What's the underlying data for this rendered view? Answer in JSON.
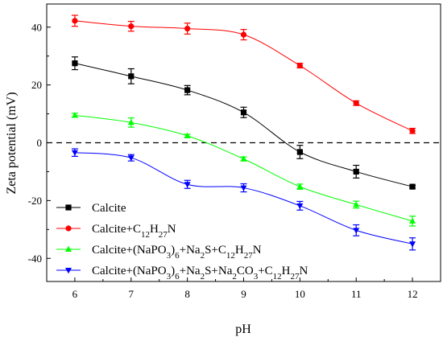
{
  "chart_data": {
    "type": "line",
    "xlabel": "pH",
    "ylabel": "Zeta potential (mV)",
    "xlim": [
      5.5,
      12.5
    ],
    "ylim": [
      -48,
      48
    ],
    "x_ticks": [
      6,
      7,
      8,
      9,
      10,
      11,
      12
    ],
    "x_tick_labels": [
      "6",
      "7",
      "8",
      "9",
      "10",
      "11",
      "12"
    ],
    "y_ticks": [
      -40,
      -20,
      0,
      20,
      40
    ],
    "y_tick_labels": [
      "-40",
      "-20",
      "0",
      "20",
      "40"
    ],
    "reference_line": {
      "y": 0,
      "style": "dashed"
    },
    "grid": false,
    "legend_position": "bottom-left",
    "x": [
      6,
      7,
      8,
      9,
      10,
      11,
      12
    ],
    "series": [
      {
        "name": "Calcite",
        "legend_parts": [
          {
            "t": "Calcite"
          }
        ],
        "color": "#000000",
        "marker": "square",
        "values": [
          27.5,
          23,
          18.2,
          10.5,
          -3.2,
          -10,
          -15.2
        ],
        "errors": [
          2.2,
          2.6,
          1.6,
          1.8,
          2.3,
          2.2,
          0.5
        ]
      },
      {
        "name": "Calcite+C12H27N",
        "legend_parts": [
          {
            "t": "Calcite+C"
          },
          {
            "t": "12",
            "sub": true
          },
          {
            "t": "H"
          },
          {
            "t": "27",
            "sub": true
          },
          {
            "t": "N"
          }
        ],
        "color": "#ff0000",
        "marker": "circle",
        "values": [
          42.2,
          40.3,
          39.5,
          37.4,
          26.7,
          13.7,
          4.1
        ],
        "errors": [
          1.9,
          1.7,
          1.9,
          1.8,
          0.8,
          0.8,
          0.9
        ]
      },
      {
        "name": "Calcite+(NaPO3)6+Na2S+C12H27N",
        "legend_parts": [
          {
            "t": "Calcite+(NaPO"
          },
          {
            "t": "3",
            "sub": true
          },
          {
            "t": ")"
          },
          {
            "t": "6",
            "sub": true
          },
          {
            "t": "+Na"
          },
          {
            "t": "2",
            "sub": true
          },
          {
            "t": "S+C"
          },
          {
            "t": "12",
            "sub": true
          },
          {
            "t": "H"
          },
          {
            "t": "27",
            "sub": true
          },
          {
            "t": "N"
          }
        ],
        "color": "#00ff00",
        "marker": "triangle-up",
        "values": [
          9.5,
          7,
          2.4,
          -5.6,
          -15.2,
          -21.4,
          -27.1
        ],
        "errors": [
          0.7,
          1.6,
          0.5,
          0.7,
          0.9,
          1.2,
          1.7
        ]
      },
      {
        "name": "Calcite+(NaPO3)6+Na2S+Na2CO3+C12H27N",
        "legend_parts": [
          {
            "t": "Calcite+(NaPO"
          },
          {
            "t": "3",
            "sub": true
          },
          {
            "t": ")"
          },
          {
            "t": "6",
            "sub": true
          },
          {
            "t": "+Na"
          },
          {
            "t": "2",
            "sub": true
          },
          {
            "t": "S+Na"
          },
          {
            "t": "2",
            "sub": true
          },
          {
            "t": "CO"
          },
          {
            "t": "3",
            "sub": true
          },
          {
            "t": "+C"
          },
          {
            "t": "12",
            "sub": true
          },
          {
            "t": "H"
          },
          {
            "t": "27",
            "sub": true
          },
          {
            "t": "N"
          }
        ],
        "color": "#0000ff",
        "marker": "triangle-down",
        "values": [
          -3.4,
          -5.2,
          -14.4,
          -15.6,
          -21.8,
          -30.3,
          -35
        ],
        "errors": [
          1.3,
          1.1,
          1.4,
          1.4,
          1.5,
          1.9,
          2.1
        ]
      }
    ]
  }
}
